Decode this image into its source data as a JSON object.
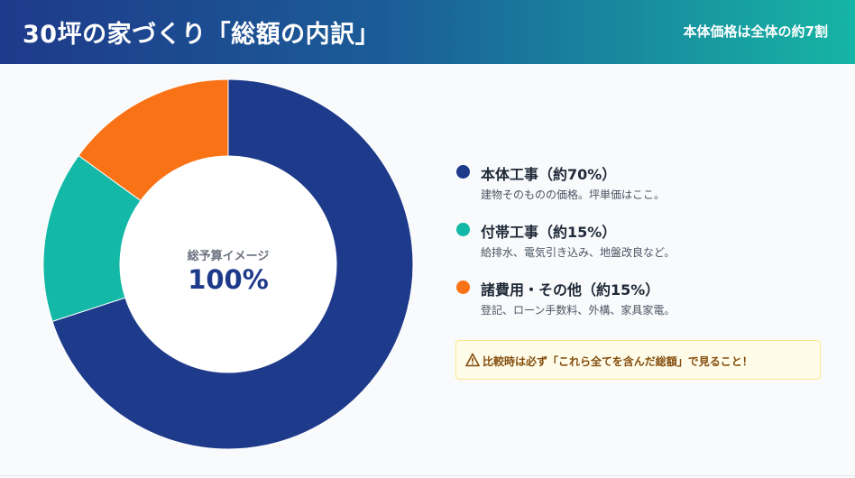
{
  "header": {
    "title": "30坪の家づくり「総額の内訳」",
    "subtitle": "本体価格は全体の約7割"
  },
  "chart_data": {
    "type": "pie",
    "variant": "donut",
    "title": "30坪の家づくり「総額の内訳」",
    "center_label": "総予算イメージ",
    "center_value": "100%",
    "legend_position": "right",
    "slices": [
      {
        "label": "本体工事（約70%）",
        "value": 70,
        "color": "#1e3a8a",
        "description": "建物そのものの価格。坪単価はここ。"
      },
      {
        "label": "付帯工事（約15%）",
        "value": 15,
        "color": "#14b8a6",
        "description": "給排水、電気引き込み、地盤改良など。"
      },
      {
        "label": "諸費用・その他（約15%）",
        "value": 15,
        "color": "#f97316",
        "description": "登記、ローン手数料、外構、家具家電。"
      }
    ]
  },
  "notice": {
    "icon": "warning-icon",
    "text": "比較時は必ず「これら全てを含んだ総額」で見ること！"
  }
}
